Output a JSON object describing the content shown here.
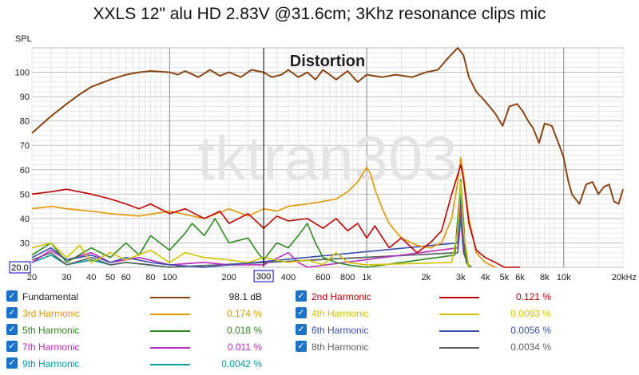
{
  "chart_data": {
    "type": "line",
    "title": "XXLS 12\" alu HD 2.83V @31.6cm; 3Khz resonance clips mic",
    "ylabel": "SPL",
    "overlay_label": "Distortion",
    "watermark": "tktran303",
    "x_scale": "log",
    "xlim": [
      20,
      20000
    ],
    "ylim": [
      20,
      110
    ],
    "y_ticks": [
      "30",
      "40",
      "50",
      "60",
      "70",
      "80",
      "90",
      "100"
    ],
    "y_min_label": "20.0",
    "x_ticks": [
      {
        "value": 20,
        "label": "20"
      },
      {
        "value": 30,
        "label": "30"
      },
      {
        "value": 40,
        "label": "40"
      },
      {
        "value": 50,
        "label": "50"
      },
      {
        "value": 60,
        "label": "60"
      },
      {
        "value": 80,
        "label": "80"
      },
      {
        "value": 100,
        "label": "100"
      },
      {
        "value": 200,
        "label": "200"
      },
      {
        "value": 300,
        "label": "300"
      },
      {
        "value": 400,
        "label": "400"
      },
      {
        "value": 600,
        "label": "600"
      },
      {
        "value": 800,
        "label": "800"
      },
      {
        "value": 1000,
        "label": "1k"
      },
      {
        "value": 2000,
        "label": "2k"
      },
      {
        "value": 3000,
        "label": "3k"
      },
      {
        "value": 4000,
        "label": "4k"
      },
      {
        "value": 5000,
        "label": "5k"
      },
      {
        "value": 6000,
        "label": "6k"
      },
      {
        "value": 8000,
        "label": "8k"
      },
      {
        "value": 10000,
        "label": "10k"
      },
      {
        "value": 20000,
        "label": "20kHz"
      }
    ],
    "cursor_x": 300,
    "cursor_label": "300",
    "series": [
      {
        "name": "Fundamental",
        "value": "98.1 dB",
        "color": "#8b4513",
        "points": [
          [
            20,
            75
          ],
          [
            22,
            78
          ],
          [
            25,
            82
          ],
          [
            30,
            87
          ],
          [
            35,
            91
          ],
          [
            40,
            94
          ],
          [
            50,
            97
          ],
          [
            60,
            99
          ],
          [
            70,
            100
          ],
          [
            80,
            100.5
          ],
          [
            100,
            100
          ],
          [
            110,
            99
          ],
          [
            120,
            100.5
          ],
          [
            140,
            98
          ],
          [
            160,
            101
          ],
          [
            180,
            98.5
          ],
          [
            200,
            100
          ],
          [
            230,
            98
          ],
          [
            260,
            101
          ],
          [
            300,
            100
          ],
          [
            330,
            98
          ],
          [
            370,
            99
          ],
          [
            400,
            101
          ],
          [
            450,
            98
          ],
          [
            500,
            100
          ],
          [
            550,
            97
          ],
          [
            600,
            101
          ],
          [
            700,
            97
          ],
          [
            800,
            100.5
          ],
          [
            900,
            96
          ],
          [
            1000,
            99
          ],
          [
            1200,
            98
          ],
          [
            1400,
            99
          ],
          [
            1700,
            98
          ],
          [
            2000,
            100
          ],
          [
            2300,
            101
          ],
          [
            2600,
            106
          ],
          [
            2900,
            110
          ],
          [
            3100,
            107
          ],
          [
            3300,
            98
          ],
          [
            3600,
            92
          ],
          [
            4000,
            88
          ],
          [
            4500,
            83
          ],
          [
            4900,
            78
          ],
          [
            5300,
            86
          ],
          [
            5800,
            87
          ],
          [
            6200,
            84
          ],
          [
            6600,
            80
          ],
          [
            7000,
            77
          ],
          [
            7500,
            71
          ],
          [
            8000,
            79
          ],
          [
            8700,
            78
          ],
          [
            9500,
            70
          ],
          [
            10000,
            65
          ],
          [
            10500,
            56
          ],
          [
            11000,
            50
          ],
          [
            12000,
            46
          ],
          [
            13000,
            54
          ],
          [
            14000,
            55
          ],
          [
            15000,
            50
          ],
          [
            16000,
            53
          ],
          [
            17000,
            54
          ],
          [
            18000,
            47
          ],
          [
            19000,
            46
          ],
          [
            20000,
            52
          ]
        ]
      },
      {
        "name": "2nd Harmonic",
        "value": "0.121 %",
        "color": "#c00000",
        "points": [
          [
            20,
            50
          ],
          [
            25,
            51
          ],
          [
            30,
            52
          ],
          [
            40,
            50
          ],
          [
            50,
            48
          ],
          [
            60,
            46
          ],
          [
            70,
            44
          ],
          [
            80,
            46
          ],
          [
            100,
            42
          ],
          [
            120,
            44
          ],
          [
            150,
            40
          ],
          [
            180,
            43
          ],
          [
            200,
            38
          ],
          [
            250,
            42
          ],
          [
            300,
            36
          ],
          [
            350,
            41
          ],
          [
            400,
            39
          ],
          [
            500,
            40
          ],
          [
            600,
            36
          ],
          [
            700,
            40
          ],
          [
            800,
            35
          ],
          [
            900,
            38
          ],
          [
            1000,
            32
          ],
          [
            1100,
            37
          ],
          [
            1300,
            28
          ],
          [
            1500,
            32
          ],
          [
            1800,
            26
          ],
          [
            2100,
            30
          ],
          [
            2400,
            35
          ],
          [
            2700,
            50
          ],
          [
            2900,
            58
          ],
          [
            3000,
            62
          ],
          [
            3100,
            56
          ],
          [
            3300,
            38
          ],
          [
            3600,
            27
          ],
          [
            4000,
            24
          ],
          [
            4500,
            22
          ],
          [
            5000,
            20
          ],
          [
            6000,
            20
          ]
        ]
      },
      {
        "name": "3rd Harmonic",
        "value": "0.174 %",
        "color": "#e69500",
        "points": [
          [
            20,
            44
          ],
          [
            25,
            45
          ],
          [
            30,
            44
          ],
          [
            40,
            43
          ],
          [
            50,
            42
          ],
          [
            70,
            41
          ],
          [
            100,
            43
          ],
          [
            150,
            40
          ],
          [
            200,
            44
          ],
          [
            250,
            41
          ],
          [
            300,
            44
          ],
          [
            350,
            43
          ],
          [
            400,
            45
          ],
          [
            500,
            46
          ],
          [
            600,
            47
          ],
          [
            700,
            48
          ],
          [
            800,
            51
          ],
          [
            900,
            55
          ],
          [
            1000,
            61
          ],
          [
            1050,
            58
          ],
          [
            1100,
            52
          ],
          [
            1200,
            44
          ],
          [
            1300,
            38
          ],
          [
            1500,
            32
          ],
          [
            1800,
            29
          ],
          [
            2100,
            28
          ],
          [
            2400,
            30
          ],
          [
            2700,
            40
          ],
          [
            2900,
            55
          ],
          [
            3000,
            65
          ],
          [
            3100,
            58
          ],
          [
            3300,
            40
          ],
          [
            3600,
            26
          ],
          [
            4000,
            22
          ],
          [
            4500,
            20
          ]
        ]
      },
      {
        "name": "4th Harmonic",
        "value": "0.0093 %",
        "color": "#d4c400",
        "points": [
          [
            20,
            28
          ],
          [
            25,
            30
          ],
          [
            30,
            24
          ],
          [
            35,
            29
          ],
          [
            40,
            22
          ],
          [
            50,
            26
          ],
          [
            60,
            23
          ],
          [
            80,
            27
          ],
          [
            100,
            22
          ],
          [
            120,
            26
          ],
          [
            150,
            24
          ],
          [
            200,
            23
          ],
          [
            250,
            22
          ],
          [
            300,
            24
          ],
          [
            400,
            22
          ],
          [
            500,
            23
          ],
          [
            600,
            21
          ],
          [
            700,
            26
          ],
          [
            800,
            22
          ],
          [
            1000,
            21
          ],
          [
            2700,
            22
          ],
          [
            2900,
            35
          ],
          [
            3000,
            55
          ],
          [
            3100,
            35
          ],
          [
            3300,
            20
          ]
        ]
      },
      {
        "name": "5th Harmonic",
        "value": "0.018 %",
        "color": "#2e8b20",
        "points": [
          [
            20,
            25
          ],
          [
            25,
            30
          ],
          [
            30,
            22
          ],
          [
            40,
            28
          ],
          [
            50,
            24
          ],
          [
            60,
            30
          ],
          [
            70,
            25
          ],
          [
            80,
            33
          ],
          [
            100,
            27
          ],
          [
            120,
            34
          ],
          [
            130,
            38
          ],
          [
            150,
            33
          ],
          [
            170,
            40
          ],
          [
            200,
            30
          ],
          [
            250,
            32
          ],
          [
            280,
            26
          ],
          [
            300,
            23
          ],
          [
            350,
            30
          ],
          [
            400,
            28
          ],
          [
            450,
            33
          ],
          [
            500,
            38
          ],
          [
            550,
            30
          ],
          [
            600,
            24
          ],
          [
            700,
            22
          ],
          [
            800,
            21
          ],
          [
            1000,
            20
          ],
          [
            2800,
            25
          ],
          [
            2950,
            48
          ],
          [
            3000,
            56
          ],
          [
            3050,
            48
          ],
          [
            3200,
            22
          ],
          [
            3400,
            20
          ]
        ]
      },
      {
        "name": "6th Harmonic",
        "value": "0.0056 %",
        "color": "#3a50b0",
        "points": [
          [
            20,
            24
          ],
          [
            25,
            28
          ],
          [
            30,
            23
          ],
          [
            40,
            25
          ],
          [
            50,
            22
          ],
          [
            60,
            24
          ],
          [
            80,
            22
          ],
          [
            100,
            21
          ],
          [
            150,
            20
          ],
          [
            2900,
            30
          ],
          [
            3000,
            50
          ],
          [
            3100,
            30
          ],
          [
            3300,
            20
          ]
        ]
      },
      {
        "name": "7th Harmonic",
        "value": "0.011 %",
        "color": "#c02cc0",
        "points": [
          [
            20,
            22
          ],
          [
            25,
            27
          ],
          [
            30,
            23
          ],
          [
            40,
            26
          ],
          [
            50,
            22
          ],
          [
            70,
            24
          ],
          [
            100,
            21
          ],
          [
            150,
            22
          ],
          [
            200,
            21
          ],
          [
            300,
            21
          ],
          [
            400,
            26
          ],
          [
            450,
            22
          ],
          [
            500,
            20
          ],
          [
            2900,
            28
          ],
          [
            3000,
            45
          ],
          [
            3100,
            28
          ],
          [
            3300,
            20
          ]
        ]
      },
      {
        "name": "8th Harmonic",
        "value": "0.0034 %",
        "color": "#606060",
        "points": [
          [
            20,
            23
          ],
          [
            25,
            26
          ],
          [
            30,
            21
          ],
          [
            40,
            24
          ],
          [
            50,
            21
          ],
          [
            60,
            22
          ],
          [
            80,
            21
          ],
          [
            100,
            20
          ],
          [
            2900,
            26
          ],
          [
            3000,
            42
          ],
          [
            3100,
            26
          ],
          [
            3300,
            20
          ]
        ]
      },
      {
        "name": "9th Harmonic",
        "value": "0.0042 %",
        "color": "#00a0a0",
        "points": [
          [
            20,
            22
          ],
          [
            25,
            25
          ],
          [
            30,
            21
          ],
          [
            40,
            23
          ],
          [
            50,
            21
          ],
          [
            60,
            22
          ],
          [
            100,
            20
          ],
          [
            2900,
            26
          ],
          [
            3000,
            40
          ],
          [
            3100,
            26
          ],
          [
            3300,
            20
          ]
        ]
      }
    ]
  }
}
